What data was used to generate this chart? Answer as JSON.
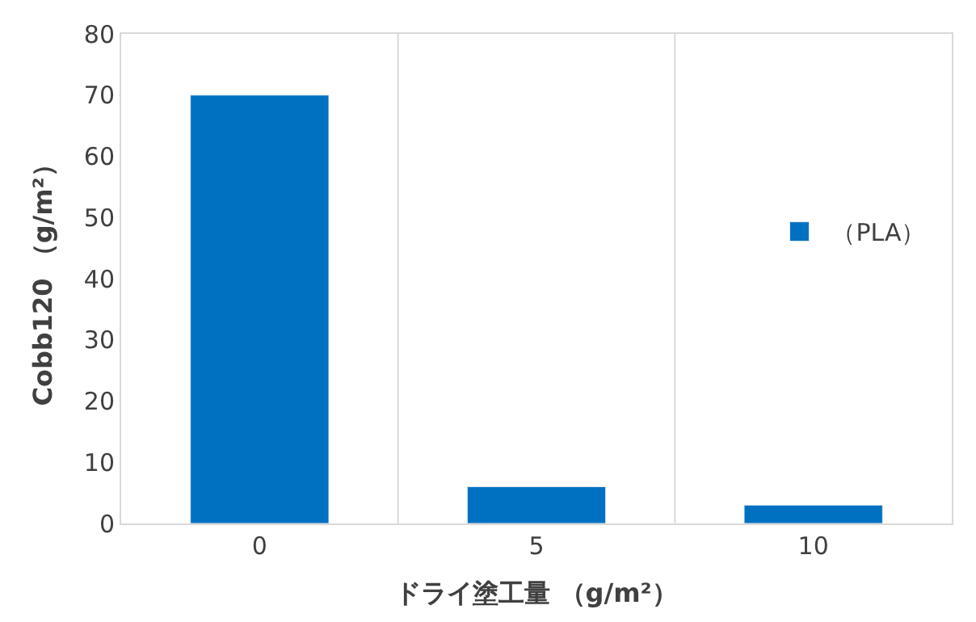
{
  "chart_data": {
    "type": "bar",
    "xlabel": "ドライ塗工量 （g/m²）",
    "ylabel": "Cobb120 （g/m²）",
    "categories": [
      "0",
      "5",
      "10"
    ],
    "series": [
      {
        "name": "（PLA）",
        "color": "#0070c0",
        "values": [
          70,
          6,
          3
        ]
      }
    ],
    "ylim": [
      0,
      80
    ],
    "yticks": [
      0,
      10,
      20,
      30,
      40,
      50,
      60,
      70,
      80
    ],
    "grid": "x",
    "legend": "top right"
  }
}
